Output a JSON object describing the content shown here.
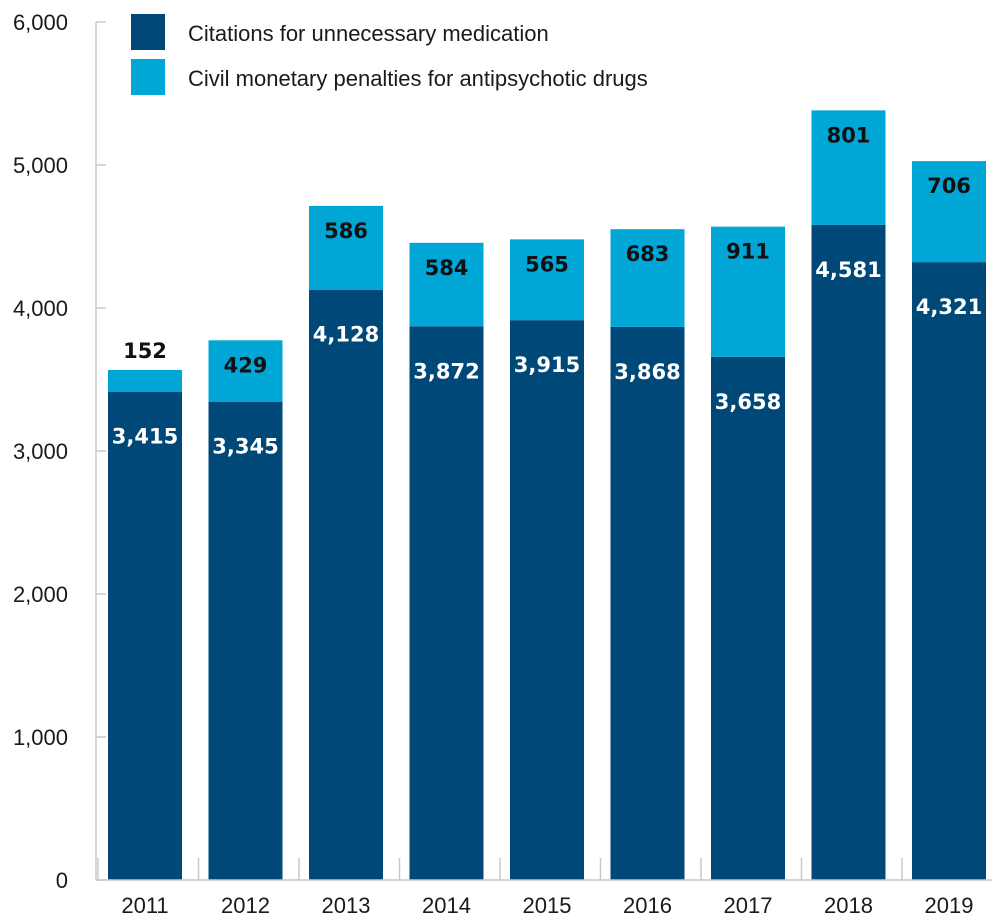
{
  "chart_data": {
    "type": "bar",
    "stacked": true,
    "categories": [
      "2011",
      "2012",
      "2013",
      "2014",
      "2015",
      "2016",
      "2017",
      "2018",
      "2019"
    ],
    "series": [
      {
        "name": "Citations for unnecessary medication",
        "color": "#004878",
        "values": [
          3415,
          3345,
          4128,
          3872,
          3915,
          3868,
          3658,
          4581,
          4321
        ],
        "labels": [
          "3,415",
          "3,345",
          "4,128",
          "3,872",
          "3,915",
          "3,868",
          "3,658",
          "4,581",
          "4,321"
        ],
        "label_color": "#ffffff"
      },
      {
        "name": "Civil monetary penalties for antipsychotic drugs",
        "color": "#00a6d6",
        "values": [
          152,
          429,
          586,
          584,
          565,
          683,
          911,
          801,
          706
        ],
        "labels": [
          "152",
          "429",
          "586",
          "584",
          "565",
          "683",
          "911",
          "801",
          "706"
        ],
        "label_color": "#111111"
      }
    ],
    "y_ticks": [
      0,
      1000,
      2000,
      3000,
      4000,
      5000,
      6000
    ],
    "y_tick_labels": [
      "0",
      "1,000",
      "2,000",
      "3,000",
      "4,000",
      "5,000",
      "6,000"
    ],
    "ylim": [
      0,
      6000
    ],
    "title": "",
    "xlabel": "",
    "ylabel": "",
    "grid": false,
    "legend_position": "top-left"
  }
}
